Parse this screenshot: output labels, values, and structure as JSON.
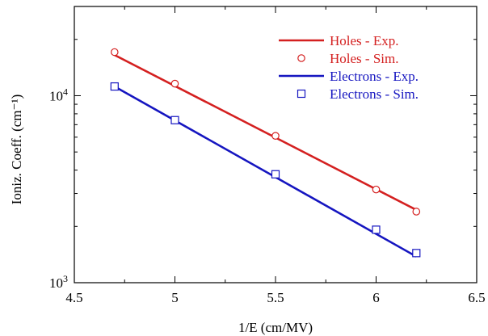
{
  "chart_data": {
    "type": "scatter",
    "title": "",
    "xlabel": "1/E (cm/MV)",
    "ylabel": "Ioniz. Coeff. (cm⁻¹)",
    "xlim": [
      4.5,
      6.5
    ],
    "ylim": [
      1000,
      30000
    ],
    "yscale": "log",
    "xticks": [
      4.5,
      5,
      5.5,
      6,
      6.5
    ],
    "xtick_labels": [
      "4.5",
      "5",
      "5.5",
      "6",
      "6.5"
    ],
    "yticks": [
      1000,
      10000
    ],
    "ytick_labels": [
      {
        "base": "10",
        "exp": "3"
      },
      {
        "base": "10",
        "exp": "4"
      }
    ],
    "grid": false,
    "legend_position": "top-right",
    "series": [
      {
        "name": "Holes - Exp.",
        "kind": "line",
        "color": "#d42020",
        "x": [
          4.7,
          6.2
        ],
        "y": [
          16500,
          2450
        ]
      },
      {
        "name": "Holes - Sim.",
        "kind": "marker",
        "marker": "circle",
        "color": "#d42020",
        "x": [
          4.7,
          5.0,
          5.5,
          6.0,
          6.2
        ],
        "y": [
          17100,
          11600,
          6100,
          3150,
          2400
        ]
      },
      {
        "name": "Electrons - Exp.",
        "kind": "line",
        "color": "#1515c0",
        "x": [
          4.7,
          6.2
        ],
        "y": [
          11200,
          1380
        ]
      },
      {
        "name": "Electrons - Sim.",
        "kind": "marker",
        "marker": "square",
        "color": "#1515c0",
        "x": [
          4.7,
          5.0,
          5.5,
          6.0,
          6.2
        ],
        "y": [
          11200,
          7400,
          3800,
          1920,
          1440
        ]
      }
    ]
  }
}
